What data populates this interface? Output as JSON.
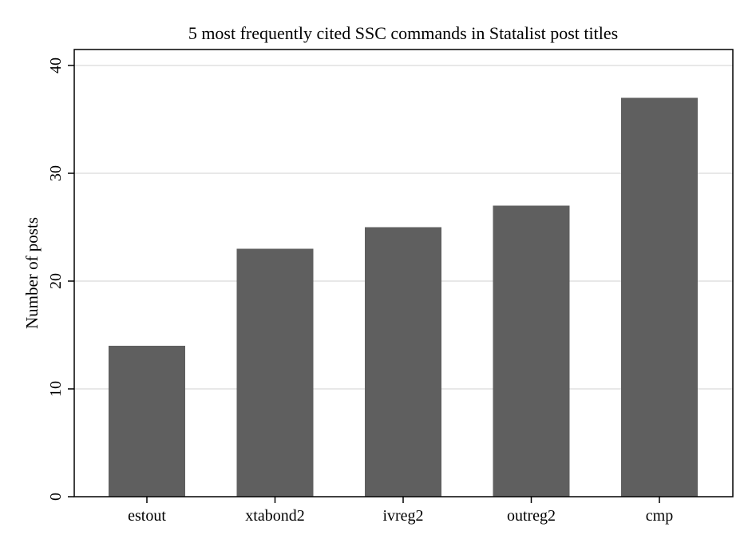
{
  "chart_data": {
    "type": "bar",
    "title": "5 most frequently cited SSC commands in Statalist post titles",
    "xlabel": "",
    "ylabel": "Number of posts",
    "categories": [
      "estout",
      "xtabond2",
      "ivreg2",
      "outreg2",
      "cmp"
    ],
    "values": [
      14,
      23,
      25,
      27,
      37
    ],
    "ylim": [
      0,
      40
    ],
    "yticks": [
      0,
      10,
      20,
      30,
      40
    ],
    "grid": true,
    "legend": "none",
    "colors": {
      "bar": "#5f5f5f",
      "grid": "#e0e0e0",
      "axis": "#000000"
    }
  }
}
